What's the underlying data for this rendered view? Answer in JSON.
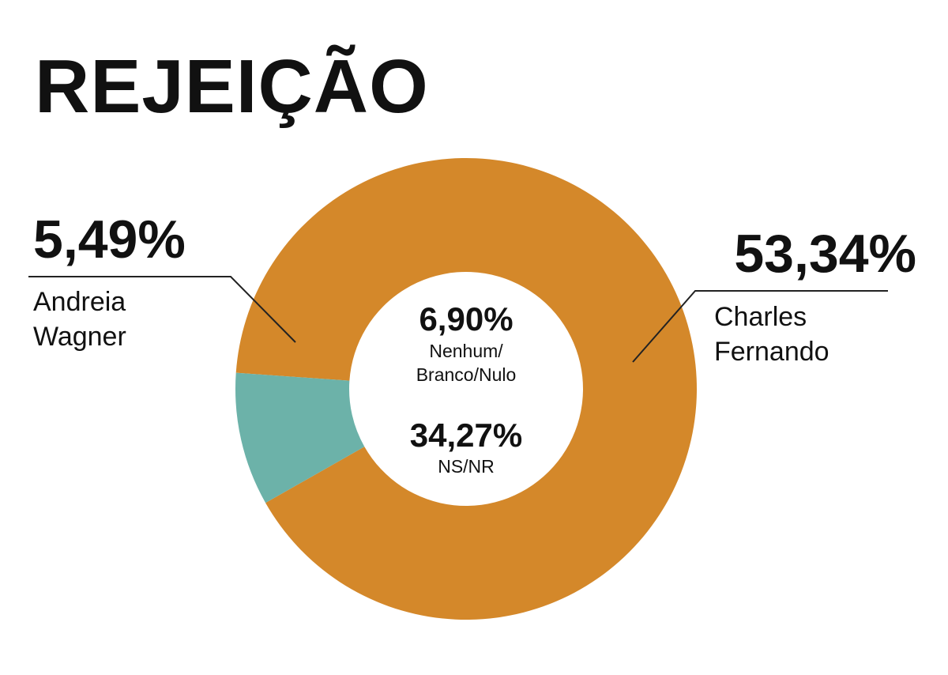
{
  "title": "REJEIÇÃO",
  "colors": {
    "orange": "#D4882A",
    "teal": "#6CB2A9",
    "text": "#111111",
    "leader": "#222222"
  },
  "chart_data": {
    "type": "pie",
    "variant": "donut",
    "title": "REJEIÇÃO",
    "slices": [
      {
        "label_lines": [
          "Charles",
          "Fernando"
        ],
        "value": 53.34,
        "display": "53,34%",
        "color": "#D4882A",
        "ring": true
      },
      {
        "label_lines": [
          "Andreia",
          "Wagner"
        ],
        "value": 5.49,
        "display": "5,49%",
        "color": "#6CB2A9",
        "ring": true
      }
    ],
    "center_items": [
      {
        "label_lines": [
          "Nenhum/",
          "Branco/Nulo"
        ],
        "value": 6.9,
        "display": "6,90%"
      },
      {
        "label_lines": [
          "NS/NR"
        ],
        "value": 34.27,
        "display": "34,27%"
      }
    ]
  }
}
